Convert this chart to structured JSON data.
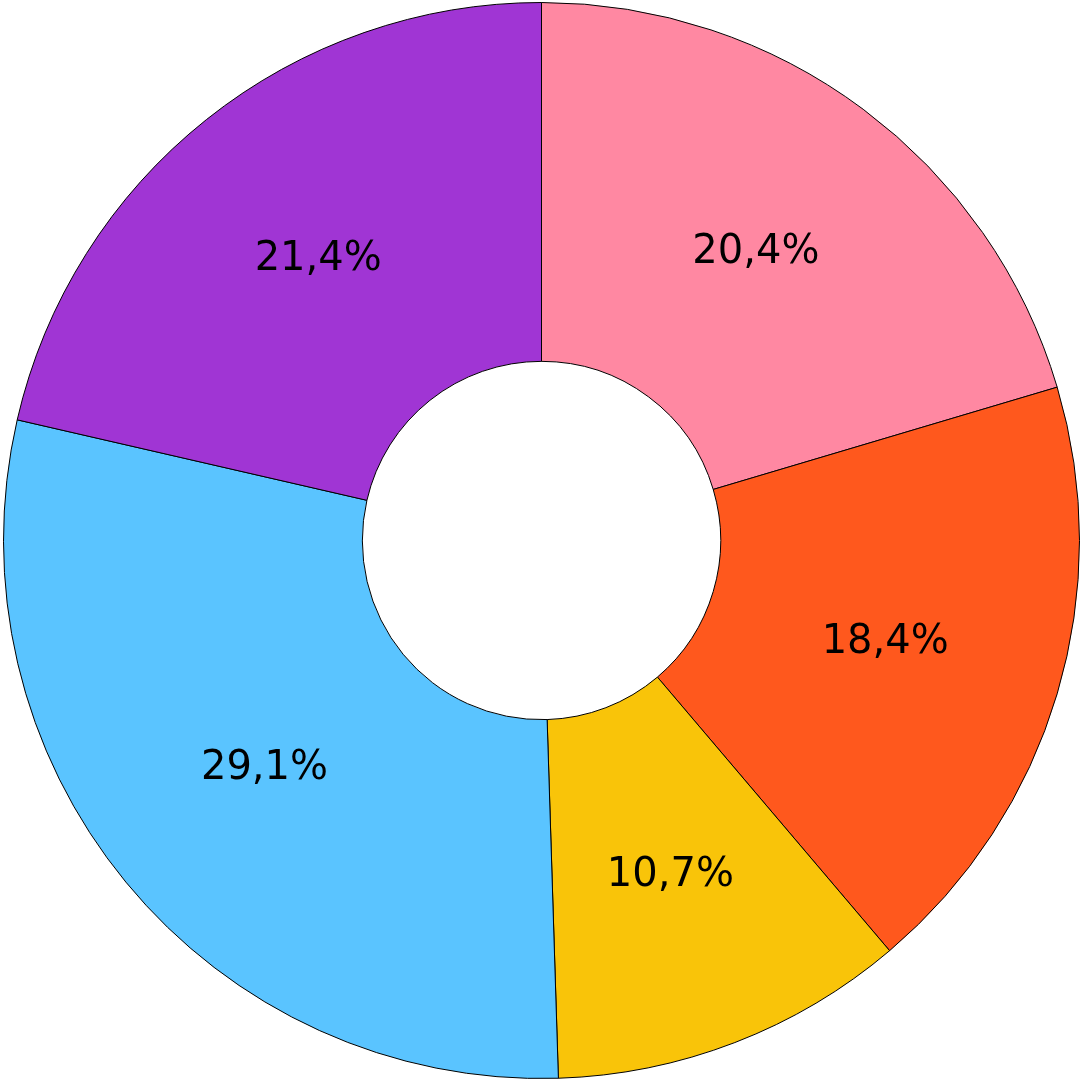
{
  "chart_data": {
    "type": "donut",
    "categories": [
      null,
      null,
      null,
      null,
      null
    ],
    "values": [
      20.4,
      18.4,
      10.7,
      29.1,
      21.4
    ],
    "colors": [
      "#ff88a2",
      "#ff581d",
      "#f9c409",
      "#5ac4ff",
      "#a035d4"
    ],
    "value_labels": [
      "20,4%",
      "18,4%",
      "10,7%",
      "29,1%",
      "21,4%"
    ]
  }
}
